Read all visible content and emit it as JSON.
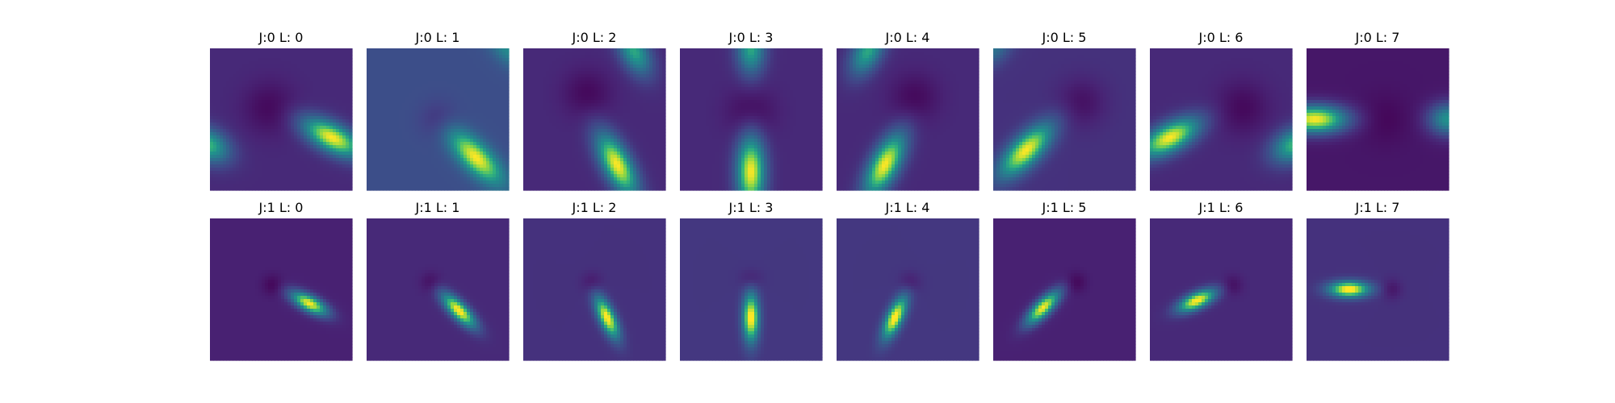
{
  "chart_data": {
    "type": "heatmap",
    "colormap": "viridis",
    "grid": false,
    "axes_visible": false,
    "rows": 2,
    "cols": 8,
    "panels": [
      {
        "title": "J:0 L: 0",
        "j": 0,
        "l": 0,
        "background": 0.15,
        "blobs": [
          {
            "cx": 0.86,
            "cy": 0.63,
            "sx": 0.16,
            "sy": 0.07,
            "rot": 28,
            "amp": 0.85
          },
          {
            "cx": -0.02,
            "cy": 0.68,
            "sx": 0.12,
            "sy": 0.08,
            "rot": 28,
            "amp": 0.6
          }
        ],
        "dip": {
          "cx": 0.42,
          "cy": 0.42,
          "s": 0.13,
          "amp": 0.12
        }
      },
      {
        "title": "J:0 L: 1",
        "j": 0,
        "l": 1,
        "background": 0.3,
        "blobs": [
          {
            "cx": 0.77,
            "cy": 0.77,
            "sx": 0.17,
            "sy": 0.07,
            "rot": 45,
            "amp": 0.7
          },
          {
            "cx": 1.0,
            "cy": 0.0,
            "sx": 0.12,
            "sy": 0.07,
            "rot": 45,
            "amp": 0.3
          }
        ],
        "dip": {
          "cx": 0.5,
          "cy": 0.5,
          "s": 0.09,
          "amp": 0.12
        }
      },
      {
        "title": "J:0 L: 2",
        "j": 0,
        "l": 2,
        "background": 0.15,
        "blobs": [
          {
            "cx": 0.66,
            "cy": 0.82,
            "sx": 0.17,
            "sy": 0.07,
            "rot": 62,
            "amp": 0.85
          },
          {
            "cx": 0.78,
            "cy": 0.02,
            "sx": 0.13,
            "sy": 0.07,
            "rot": 62,
            "amp": 0.55
          }
        ],
        "dip": {
          "cx": 0.45,
          "cy": 0.32,
          "s": 0.12,
          "amp": 0.12
        }
      },
      {
        "title": "J:0 L: 3",
        "j": 0,
        "l": 3,
        "background": 0.15,
        "blobs": [
          {
            "cx": 0.5,
            "cy": 0.87,
            "sx": 0.18,
            "sy": 0.07,
            "rot": 90,
            "amp": 0.85
          },
          {
            "cx": 0.5,
            "cy": 0.0,
            "sx": 0.13,
            "sy": 0.07,
            "rot": 90,
            "amp": 0.55
          }
        ],
        "dip": {
          "cx": 0.5,
          "cy": 0.45,
          "s": 0.12,
          "amp": 0.12
        }
      },
      {
        "title": "J:0 L: 4",
        "j": 0,
        "l": 4,
        "background": 0.15,
        "blobs": [
          {
            "cx": 0.34,
            "cy": 0.82,
            "sx": 0.17,
            "sy": 0.07,
            "rot": 118,
            "amp": 0.85
          },
          {
            "cx": 0.22,
            "cy": 0.02,
            "sx": 0.13,
            "sy": 0.07,
            "rot": 118,
            "amp": 0.55
          }
        ],
        "dip": {
          "cx": 0.55,
          "cy": 0.35,
          "s": 0.12,
          "amp": 0.12
        }
      },
      {
        "title": "J:0 L: 5",
        "j": 0,
        "l": 5,
        "background": 0.18,
        "blobs": [
          {
            "cx": 0.23,
            "cy": 0.72,
            "sx": 0.17,
            "sy": 0.07,
            "rot": 135,
            "amp": 0.82
          },
          {
            "cx": 0.0,
            "cy": 0.0,
            "sx": 0.12,
            "sy": 0.07,
            "rot": 135,
            "amp": 0.3
          }
        ],
        "dip": {
          "cx": 0.62,
          "cy": 0.38,
          "s": 0.12,
          "amp": 0.12
        }
      },
      {
        "title": "J:0 L: 6",
        "j": 0,
        "l": 6,
        "background": 0.15,
        "blobs": [
          {
            "cx": 0.14,
            "cy": 0.63,
            "sx": 0.16,
            "sy": 0.07,
            "rot": 152,
            "amp": 0.85
          },
          {
            "cx": 1.02,
            "cy": 0.68,
            "sx": 0.12,
            "sy": 0.08,
            "rot": 152,
            "amp": 0.6
          }
        ],
        "dip": {
          "cx": 0.65,
          "cy": 0.42,
          "s": 0.13,
          "amp": 0.12
        }
      },
      {
        "title": "J:0 L: 7",
        "j": 0,
        "l": 7,
        "background": 0.08,
        "blobs": [
          {
            "cx": 0.06,
            "cy": 0.5,
            "sx": 0.16,
            "sy": 0.07,
            "rot": 0,
            "amp": 0.92
          },
          {
            "cx": 1.0,
            "cy": 0.5,
            "sx": 0.1,
            "sy": 0.08,
            "rot": 0,
            "amp": 0.55
          }
        ],
        "dip": {
          "cx": 0.55,
          "cy": 0.5,
          "s": 0.12,
          "amp": 0.06
        }
      },
      {
        "title": "J:1 L: 0",
        "j": 1,
        "l": 0,
        "background": 0.12,
        "blobs": [
          {
            "cx": 0.7,
            "cy": 0.6,
            "sx": 0.1,
            "sy": 0.04,
            "rot": 28,
            "amp": 0.88
          }
        ],
        "dip": {
          "cx": 0.44,
          "cy": 0.47,
          "s": 0.05,
          "amp": 0.1
        }
      },
      {
        "title": "J:1 L: 1",
        "j": 1,
        "l": 1,
        "background": 0.15,
        "blobs": [
          {
            "cx": 0.65,
            "cy": 0.65,
            "sx": 0.11,
            "sy": 0.04,
            "rot": 45,
            "amp": 0.88
          }
        ],
        "dip": {
          "cx": 0.45,
          "cy": 0.45,
          "s": 0.05,
          "amp": 0.1
        }
      },
      {
        "title": "J:1 L: 2",
        "j": 1,
        "l": 2,
        "background": 0.18,
        "blobs": [
          {
            "cx": 0.59,
            "cy": 0.7,
            "sx": 0.11,
            "sy": 0.04,
            "rot": 65,
            "amp": 0.85
          }
        ],
        "dip": {
          "cx": 0.48,
          "cy": 0.45,
          "s": 0.05,
          "amp": 0.1
        }
      },
      {
        "title": "J:1 L: 3",
        "j": 1,
        "l": 3,
        "background": 0.2,
        "blobs": [
          {
            "cx": 0.5,
            "cy": 0.7,
            "sx": 0.12,
            "sy": 0.04,
            "rot": 90,
            "amp": 0.85
          }
        ],
        "dip": {
          "cx": 0.5,
          "cy": 0.43,
          "s": 0.05,
          "amp": 0.1
        }
      },
      {
        "title": "J:1 L: 4",
        "j": 1,
        "l": 4,
        "background": 0.2,
        "blobs": [
          {
            "cx": 0.41,
            "cy": 0.7,
            "sx": 0.11,
            "sy": 0.04,
            "rot": 115,
            "amp": 0.85
          }
        ],
        "dip": {
          "cx": 0.52,
          "cy": 0.45,
          "s": 0.05,
          "amp": 0.1
        }
      },
      {
        "title": "J:1 L: 5",
        "j": 1,
        "l": 5,
        "background": 0.12,
        "blobs": [
          {
            "cx": 0.35,
            "cy": 0.63,
            "sx": 0.11,
            "sy": 0.04,
            "rot": 135,
            "amp": 0.88
          }
        ],
        "dip": {
          "cx": 0.58,
          "cy": 0.45,
          "s": 0.05,
          "amp": 0.1
        }
      },
      {
        "title": "J:1 L: 6",
        "j": 1,
        "l": 6,
        "background": 0.15,
        "blobs": [
          {
            "cx": 0.33,
            "cy": 0.58,
            "sx": 0.1,
            "sy": 0.04,
            "rot": 155,
            "amp": 0.88
          }
        ],
        "dip": {
          "cx": 0.58,
          "cy": 0.47,
          "s": 0.05,
          "amp": 0.1
        }
      },
      {
        "title": "J:1 L: 7",
        "j": 1,
        "l": 7,
        "background": 0.18,
        "blobs": [
          {
            "cx": 0.3,
            "cy": 0.5,
            "sx": 0.1,
            "sy": 0.04,
            "rot": 0,
            "amp": 0.88
          }
        ],
        "dip": {
          "cx": 0.6,
          "cy": 0.5,
          "s": 0.05,
          "amp": 0.1
        }
      }
    ]
  }
}
